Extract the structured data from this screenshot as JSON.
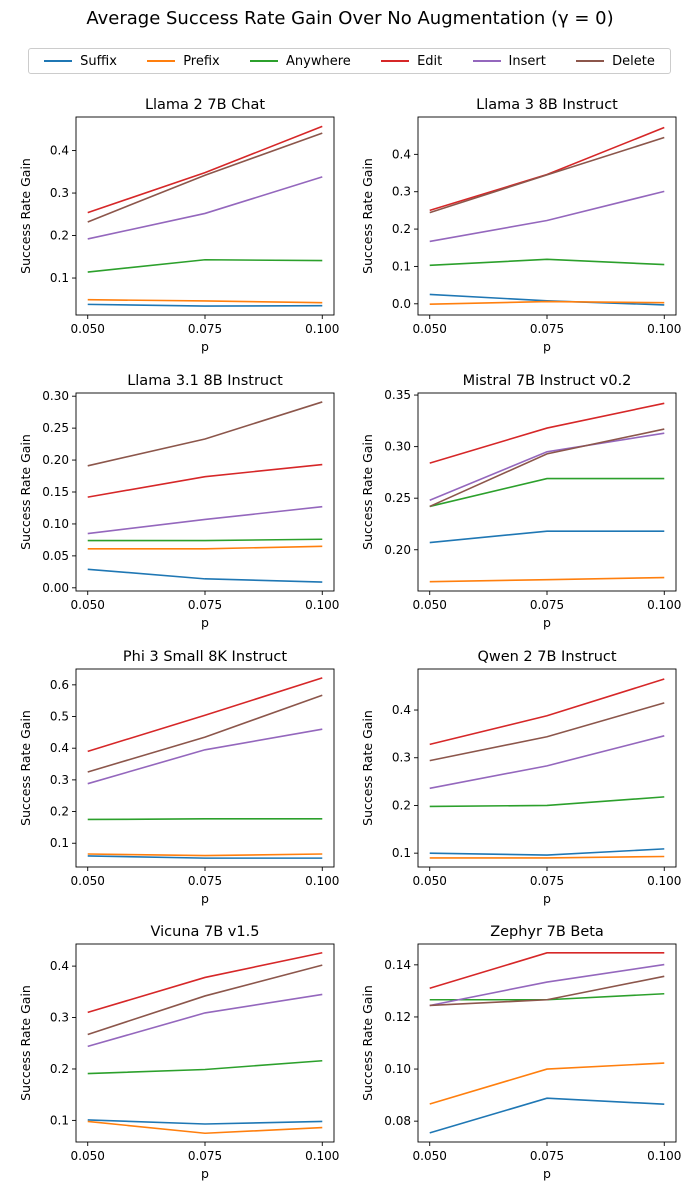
{
  "figure": {
    "title": "Average Success Rate Gain Over No Augmentation (γ = 0)"
  },
  "legend": [
    {
      "name": "Suffix",
      "color": "#1f77b4"
    },
    {
      "name": "Prefix",
      "color": "#ff7f0e"
    },
    {
      "name": "Anywhere",
      "color": "#2ca02c"
    },
    {
      "name": "Edit",
      "color": "#d62728"
    },
    {
      "name": "Insert",
      "color": "#9467bd"
    },
    {
      "name": "Delete",
      "color": "#8c564b"
    }
  ],
  "chart_data": [
    {
      "type": "line",
      "title": "Llama 2 7B Chat",
      "xlabel": "p",
      "ylabel": "Success Rate Gain",
      "x": [
        0.05,
        0.075,
        0.1
      ],
      "xticks": [
        "0.050",
        "0.075",
        "0.100"
      ],
      "ylim": [
        0.013,
        0.479
      ],
      "yticks": [
        "0.1",
        "0.2",
        "0.3",
        "0.4"
      ],
      "series": [
        {
          "name": "Suffix",
          "values": [
            0.038,
            0.034,
            0.035
          ]
        },
        {
          "name": "Prefix",
          "values": [
            0.049,
            0.046,
            0.042
          ]
        },
        {
          "name": "Anywhere",
          "values": [
            0.114,
            0.143,
            0.141
          ]
        },
        {
          "name": "Edit",
          "values": [
            0.254,
            0.348,
            0.457
          ]
        },
        {
          "name": "Insert",
          "values": [
            0.192,
            0.252,
            0.338
          ]
        },
        {
          "name": "Delete",
          "values": [
            0.232,
            0.342,
            0.441
          ]
        }
      ]
    },
    {
      "type": "line",
      "title": "Llama 3 8B Instruct",
      "xlabel": "p",
      "ylabel": "Success Rate Gain",
      "x": [
        0.05,
        0.075,
        0.1
      ],
      "xticks": [
        "0.050",
        "0.075",
        "0.100"
      ],
      "ylim": [
        -0.03,
        0.5
      ],
      "yticks": [
        "0.0",
        "0.1",
        "0.2",
        "0.3",
        "0.4"
      ],
      "series": [
        {
          "name": "Suffix",
          "values": [
            0.025,
            0.008,
            -0.003
          ]
        },
        {
          "name": "Prefix",
          "values": [
            -0.001,
            0.006,
            0.003
          ]
        },
        {
          "name": "Anywhere",
          "values": [
            0.103,
            0.119,
            0.105
          ]
        },
        {
          "name": "Edit",
          "values": [
            0.25,
            0.346,
            0.472
          ]
        },
        {
          "name": "Insert",
          "values": [
            0.167,
            0.223,
            0.301
          ]
        },
        {
          "name": "Delete",
          "values": [
            0.244,
            0.345,
            0.445
          ]
        }
      ]
    },
    {
      "type": "line",
      "title": "Llama 3.1 8B Instruct",
      "xlabel": "p",
      "ylabel": "Success Rate Gain",
      "x": [
        0.05,
        0.075,
        0.1
      ],
      "xticks": [
        "0.050",
        "0.075",
        "0.100"
      ],
      "ylim": [
        -0.005,
        0.305
      ],
      "yticks": [
        "0.00",
        "0.05",
        "0.10",
        "0.15",
        "0.20",
        "0.25",
        "0.30"
      ],
      "series": [
        {
          "name": "Suffix",
          "values": [
            0.029,
            0.014,
            0.009
          ]
        },
        {
          "name": "Prefix",
          "values": [
            0.061,
            0.061,
            0.065
          ]
        },
        {
          "name": "Anywhere",
          "values": [
            0.074,
            0.074,
            0.076
          ]
        },
        {
          "name": "Edit",
          "values": [
            0.142,
            0.174,
            0.193
          ]
        },
        {
          "name": "Insert",
          "values": [
            0.085,
            0.107,
            0.127
          ]
        },
        {
          "name": "Delete",
          "values": [
            0.191,
            0.233,
            0.291
          ]
        }
      ]
    },
    {
      "type": "line",
      "title": "Mistral 7B Instruct v0.2",
      "xlabel": "p",
      "ylabel": "Success Rate Gain",
      "x": [
        0.05,
        0.075,
        0.1
      ],
      "xticks": [
        "0.050",
        "0.075",
        "0.100"
      ],
      "ylim": [
        0.16,
        0.352
      ],
      "yticks": [
        "0.20",
        "0.25",
        "0.30",
        "0.35"
      ],
      "series": [
        {
          "name": "Suffix",
          "values": [
            0.207,
            0.218,
            0.218
          ]
        },
        {
          "name": "Prefix",
          "values": [
            0.169,
            0.171,
            0.173
          ]
        },
        {
          "name": "Anywhere",
          "values": [
            0.242,
            0.269,
            0.269
          ]
        },
        {
          "name": "Edit",
          "values": [
            0.284,
            0.318,
            0.342
          ]
        },
        {
          "name": "Insert",
          "values": [
            0.248,
            0.295,
            0.313
          ]
        },
        {
          "name": "Delete",
          "values": [
            0.242,
            0.293,
            0.317
          ]
        }
      ]
    },
    {
      "type": "line",
      "title": "Phi 3 Small 8K Instruct",
      "xlabel": "p",
      "ylabel": "Success Rate Gain",
      "x": [
        0.05,
        0.075,
        0.1
      ],
      "xticks": [
        "0.050",
        "0.075",
        "0.100"
      ],
      "ylim": [
        0.025,
        0.65
      ],
      "yticks": [
        "0.1",
        "0.2",
        "0.3",
        "0.4",
        "0.5",
        "0.6"
      ],
      "series": [
        {
          "name": "Suffix",
          "values": [
            0.06,
            0.053,
            0.053
          ]
        },
        {
          "name": "Prefix",
          "values": [
            0.066,
            0.061,
            0.066
          ]
        },
        {
          "name": "Anywhere",
          "values": [
            0.175,
            0.177,
            0.177
          ]
        },
        {
          "name": "Edit",
          "values": [
            0.39,
            0.504,
            0.622
          ]
        },
        {
          "name": "Insert",
          "values": [
            0.288,
            0.395,
            0.46
          ]
        },
        {
          "name": "Delete",
          "values": [
            0.325,
            0.435,
            0.567
          ]
        }
      ]
    },
    {
      "type": "line",
      "title": "Qwen 2 7B Instruct",
      "xlabel": "p",
      "ylabel": "Success Rate Gain",
      "x": [
        0.05,
        0.075,
        0.1
      ],
      "xticks": [
        "0.050",
        "0.075",
        "0.100"
      ],
      "ylim": [
        0.071,
        0.486
      ],
      "yticks": [
        "0.1",
        "0.2",
        "0.3",
        "0.4"
      ],
      "series": [
        {
          "name": "Suffix",
          "values": [
            0.1,
            0.096,
            0.109
          ]
        },
        {
          "name": "Prefix",
          "values": [
            0.09,
            0.09,
            0.093
          ]
        },
        {
          "name": "Anywhere",
          "values": [
            0.198,
            0.2,
            0.218
          ]
        },
        {
          "name": "Edit",
          "values": [
            0.328,
            0.388,
            0.465
          ]
        },
        {
          "name": "Insert",
          "values": [
            0.236,
            0.283,
            0.346
          ]
        },
        {
          "name": "Delete",
          "values": [
            0.294,
            0.344,
            0.415
          ]
        }
      ]
    },
    {
      "type": "line",
      "title": "Vicuna 7B v1.5",
      "xlabel": "p",
      "ylabel": "Success Rate Gain",
      "x": [
        0.05,
        0.075,
        0.1
      ],
      "xticks": [
        "0.050",
        "0.075",
        "0.100"
      ],
      "ylim": [
        0.058,
        0.443
      ],
      "yticks": [
        "0.1",
        "0.2",
        "0.3",
        "0.4"
      ],
      "series": [
        {
          "name": "Suffix",
          "values": [
            0.101,
            0.093,
            0.098
          ]
        },
        {
          "name": "Prefix",
          "values": [
            0.098,
            0.075,
            0.086
          ]
        },
        {
          "name": "Anywhere",
          "values": [
            0.191,
            0.199,
            0.216
          ]
        },
        {
          "name": "Edit",
          "values": [
            0.31,
            0.378,
            0.426
          ]
        },
        {
          "name": "Insert",
          "values": [
            0.244,
            0.309,
            0.345
          ]
        },
        {
          "name": "Delete",
          "values": [
            0.267,
            0.342,
            0.402
          ]
        }
      ]
    },
    {
      "type": "line",
      "title": "Zephyr 7B Beta",
      "xlabel": "p",
      "ylabel": "Success Rate Gain",
      "x": [
        0.05,
        0.075,
        0.1
      ],
      "xticks": [
        "0.050",
        "0.075",
        "0.100"
      ],
      "ylim": [
        0.072,
        0.148
      ],
      "yticks": [
        "0.08",
        "0.10",
        "0.12",
        "0.14"
      ],
      "series": [
        {
          "name": "Suffix",
          "values": [
            0.0755,
            0.0888,
            0.0865
          ]
        },
        {
          "name": "Prefix",
          "values": [
            0.0866,
            0.1,
            0.1023
          ]
        },
        {
          "name": "Anywhere",
          "values": [
            0.1266,
            0.1266,
            0.1289
          ]
        },
        {
          "name": "Edit",
          "values": [
            0.131,
            0.1446,
            0.1446
          ]
        },
        {
          "name": "Insert",
          "values": [
            0.1244,
            0.1334,
            0.1401
          ]
        },
        {
          "name": "Delete",
          "values": [
            0.1244,
            0.1266,
            0.1356
          ]
        }
      ]
    }
  ]
}
